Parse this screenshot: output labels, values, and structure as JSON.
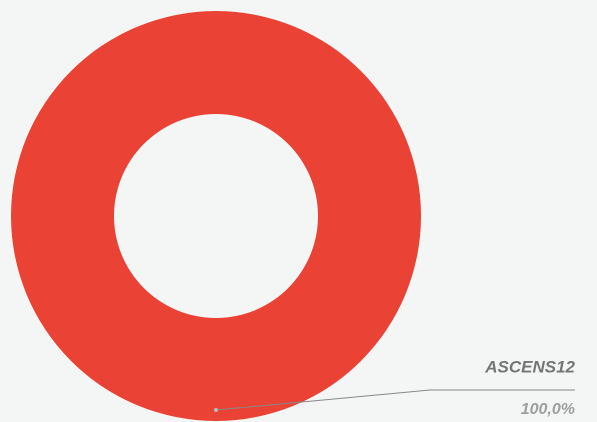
{
  "chart_data": {
    "type": "donut",
    "categories": [
      "ASCENS12"
    ],
    "values": [
      100
    ],
    "value_labels": [
      "100,0%"
    ],
    "colors": [
      "#ea4335"
    ]
  }
}
